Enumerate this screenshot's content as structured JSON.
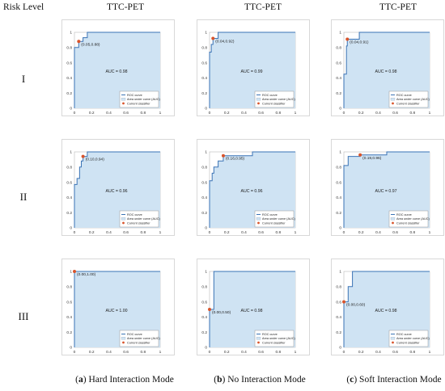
{
  "header": {
    "risk_level": "Risk Level",
    "columns": [
      "TTC-PET",
      "TTC-PET",
      "TTC-PET"
    ]
  },
  "rows": [
    "I",
    "II",
    "III"
  ],
  "captions": [
    {
      "letter": "a",
      "text": ") Hard Interaction Mode"
    },
    {
      "letter": "b",
      "text": ") No Interaction Mode"
    },
    {
      "letter": "c",
      "text": ") Soft Interaction Mode"
    }
  ],
  "legend": {
    "roc": "ROC curve",
    "area": "Area under curve (AUC)",
    "classifier": "Current classifier"
  },
  "colors": {
    "curve": "#3a73b5",
    "fill": "#cfe3f3",
    "point": "#d9542b",
    "frame": "#cfcfcf"
  },
  "chart_data": [
    {
      "type": "area",
      "row": 0,
      "col": 0,
      "auc_label": "AUC = 0.98",
      "point_label": "(0.05,0.88)",
      "current_classifier": [
        0.05,
        0.88
      ],
      "xlim": [
        0,
        1
      ],
      "ylim": [
        0,
        1
      ],
      "xticks": [
        "0",
        "0.2",
        "0.4",
        "0.6",
        "0.8",
        "1"
      ],
      "yticks": [
        "0",
        "0.2",
        "0.4",
        "0.6",
        "0.8",
        "1"
      ],
      "x": [
        0,
        0,
        0.05,
        0.05,
        0.1,
        0.1,
        0.15,
        0.15,
        1
      ],
      "y": [
        0,
        0.8,
        0.8,
        0.88,
        0.88,
        0.93,
        0.93,
        1,
        1
      ]
    },
    {
      "type": "area",
      "row": 0,
      "col": 1,
      "auc_label": "AUC = 0.99",
      "point_label": "(0.04,0.92)",
      "current_classifier": [
        0.04,
        0.92
      ],
      "xlim": [
        0,
        1
      ],
      "ylim": [
        0,
        1
      ],
      "xticks": [
        "0",
        "0.2",
        "0.4",
        "0.6",
        "0.8",
        "1"
      ],
      "yticks": [
        "0",
        "0.2",
        "0.4",
        "0.6",
        "0.8",
        "1"
      ],
      "x": [
        0,
        0,
        0.02,
        0.02,
        0.04,
        0.04,
        0.1,
        0.1,
        1
      ],
      "y": [
        0,
        0.74,
        0.74,
        0.84,
        0.84,
        0.92,
        0.92,
        1,
        1
      ]
    },
    {
      "type": "area",
      "row": 0,
      "col": 2,
      "auc_label": "AUC = 0.98",
      "point_label": "(0.04,0.91)",
      "current_classifier": [
        0.04,
        0.91
      ],
      "xlim": [
        0,
        1
      ],
      "ylim": [
        0,
        1
      ],
      "xticks": [
        "0",
        "0.2",
        "0.4",
        "0.6",
        "0.8",
        "1"
      ],
      "yticks": [
        "0",
        "0.2",
        "0.4",
        "0.6",
        "0.8",
        "1"
      ],
      "x": [
        0,
        0,
        0.03,
        0.03,
        0.04,
        0.04,
        0.18,
        0.18,
        1
      ],
      "y": [
        0,
        0.45,
        0.45,
        0.82,
        0.82,
        0.91,
        0.91,
        1,
        1
      ]
    },
    {
      "type": "area",
      "row": 1,
      "col": 0,
      "auc_label": "AUC = 0.96",
      "point_label": "(0.10,0.94)",
      "current_classifier": [
        0.1,
        0.94
      ],
      "xlim": [
        0,
        1
      ],
      "ylim": [
        0,
        1
      ],
      "xticks": [
        "0",
        "0.2",
        "0.4",
        "0.6",
        "0.8",
        "1"
      ],
      "yticks": [
        "0",
        "0.2",
        "0.4",
        "0.6",
        "0.8",
        "1"
      ],
      "x": [
        0,
        0,
        0.03,
        0.03,
        0.06,
        0.06,
        0.08,
        0.08,
        0.1,
        0.1,
        0.15,
        0.15,
        1
      ],
      "y": [
        0,
        0.57,
        0.57,
        0.65,
        0.65,
        0.8,
        0.8,
        0.88,
        0.88,
        0.94,
        0.94,
        1,
        1
      ]
    },
    {
      "type": "area",
      "row": 1,
      "col": 1,
      "auc_label": "AUC = 0.96",
      "point_label": "(0.16,0.95)",
      "current_classifier": [
        0.16,
        0.95
      ],
      "xlim": [
        0,
        1
      ],
      "ylim": [
        0,
        1
      ],
      "xticks": [
        "0",
        "0.2",
        "0.4",
        "0.6",
        "0.8",
        "1"
      ],
      "yticks": [
        "0",
        "0.2",
        "0.4",
        "0.6",
        "0.8",
        "1"
      ],
      "x": [
        0,
        0,
        0.03,
        0.03,
        0.05,
        0.05,
        0.1,
        0.1,
        0.16,
        0.16,
        0.5,
        0.5,
        1
      ],
      "y": [
        0,
        0.62,
        0.62,
        0.72,
        0.72,
        0.8,
        0.8,
        0.88,
        0.88,
        0.95,
        0.95,
        1,
        1
      ]
    },
    {
      "type": "area",
      "row": 1,
      "col": 2,
      "auc_label": "AUC = 0.97",
      "point_label": "(0.19,0.96)",
      "current_classifier": [
        0.19,
        0.96
      ],
      "xlim": [
        0,
        1
      ],
      "ylim": [
        0,
        1
      ],
      "xticks": [
        "0",
        "0.2",
        "0.4",
        "0.6",
        "0.8",
        "1"
      ],
      "yticks": [
        "0",
        "0.2",
        "0.4",
        "0.6",
        "0.8",
        "1"
      ],
      "x": [
        0,
        0,
        0.05,
        0.05,
        0.19,
        0.19,
        0.5,
        0.5,
        1
      ],
      "y": [
        0,
        0.82,
        0.82,
        0.94,
        0.94,
        0.96,
        0.96,
        1,
        1
      ]
    },
    {
      "type": "area",
      "row": 2,
      "col": 0,
      "auc_label": "AUC = 1.00",
      "point_label": "(0.00,1.00)",
      "current_classifier": [
        0.0,
        1.0
      ],
      "xlim": [
        0,
        1
      ],
      "ylim": [
        0,
        1
      ],
      "xticks": [
        "0",
        "0.2",
        "0.4",
        "0.6",
        "0.8",
        "1"
      ],
      "yticks": [
        "0",
        "0.2",
        "0.4",
        "0.6",
        "0.8",
        "1"
      ],
      "x": [
        0,
        0,
        1
      ],
      "y": [
        0,
        1,
        1
      ]
    },
    {
      "type": "area",
      "row": 2,
      "col": 1,
      "auc_label": "AUC = 0.98",
      "point_label": "(0.00,0.50)",
      "current_classifier": [
        0.0,
        0.5
      ],
      "xlim": [
        0,
        1
      ],
      "ylim": [
        0,
        1
      ],
      "xticks": [
        "0",
        "0.2",
        "0.4",
        "0.6",
        "0.8",
        "1"
      ],
      "yticks": [
        "0",
        "0.2",
        "0.4",
        "0.6",
        "0.8",
        "1"
      ],
      "x": [
        0,
        0,
        0.05,
        0.05,
        1
      ],
      "y": [
        0,
        0.5,
        0.5,
        1,
        1
      ]
    },
    {
      "type": "area",
      "row": 2,
      "col": 2,
      "auc_label": "AUC = 0.98",
      "point_label": "(0.00,0.60)",
      "current_classifier": [
        0.0,
        0.6
      ],
      "xlim": [
        0,
        1
      ],
      "ylim": [
        0,
        1
      ],
      "xticks": [
        "0",
        "0.2",
        "0.4",
        "0.6",
        "0.8",
        "1"
      ],
      "yticks": [
        "0",
        "0.2",
        "0.4",
        "0.6",
        "0.8",
        "1"
      ],
      "x": [
        0,
        0,
        0.05,
        0.05,
        0.1,
        0.1,
        1
      ],
      "y": [
        0,
        0.6,
        0.6,
        0.8,
        0.8,
        1,
        1
      ]
    }
  ]
}
